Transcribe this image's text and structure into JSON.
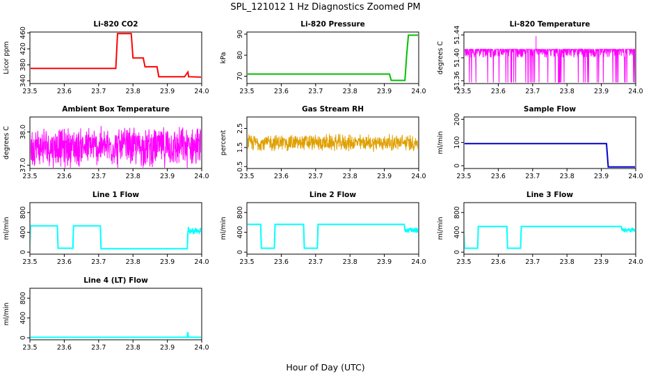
{
  "figure": {
    "title": "SPL_121012  1 Hz Diagnostics Zoomed PM",
    "xlabel": "Hour of Day (UTC)"
  },
  "chart_data": [
    {
      "type": "line",
      "title": "Li-820 CO2",
      "ylabel": "Licor ppm",
      "color": "#ff0000",
      "xlim": [
        23.5,
        24.0
      ],
      "ylim": [
        333,
        462
      ],
      "xticks": [
        "23.5",
        "23.6",
        "23.7",
        "23.8",
        "23.9",
        "24.0"
      ],
      "yticks": [
        "340",
        "380",
        "420",
        "460"
      ],
      "series": [
        {
          "x": [
            23.5,
            23.75,
            23.755,
            23.795,
            23.8,
            23.83,
            23.835,
            23.87,
            23.875,
            23.95,
            23.96,
            23.962,
            24.0
          ],
          "y": [
            371,
            371,
            458,
            458,
            397,
            397,
            375,
            375,
            350,
            350,
            362,
            350,
            349
          ]
        }
      ]
    },
    {
      "type": "line",
      "title": "Li-820 Pressure",
      "ylabel": "kPa",
      "color": "#00c000",
      "xlim": [
        23.5,
        24.0
      ],
      "ylim": [
        66.5,
        91
      ],
      "xticks": [
        "23.5",
        "23.6",
        "23.7",
        "23.8",
        "23.9",
        "24.0"
      ],
      "yticks": [
        "70",
        "80",
        "90"
      ],
      "series": [
        {
          "x": [
            23.5,
            23.915,
            23.92,
            23.96,
            23.965,
            23.97,
            24.0
          ],
          "y": [
            71,
            71,
            68,
            68,
            80,
            89.5,
            89.5
          ]
        }
      ]
    },
    {
      "type": "line",
      "title": "Li-820 Temperature",
      "ylabel": "degrees C",
      "color": "#ff00ff",
      "xlim": [
        23.5,
        24.0
      ],
      "ylim": [
        51.355,
        51.445
      ],
      "xticks": [
        "23.5",
        "23.6",
        "23.7",
        "23.8",
        "23.9",
        "24.0"
      ],
      "yticks": [
        "51.36",
        "51.40",
        "51.44"
      ],
      "band": [
        51.357,
        51.415
      ],
      "spikes": [
        {
          "x": 23.71,
          "y": 51.438
        }
      ]
    },
    {
      "type": "line",
      "title": "Ambient Box Temperature",
      "ylabel": "degrees C",
      "color": "#ff00ff",
      "xlim": [
        23.5,
        24.0
      ],
      "ylim": [
        36.9,
        38.45
      ],
      "xticks": [
        "23.5",
        "23.6",
        "23.7",
        "23.8",
        "23.9",
        "24.0"
      ],
      "yticks": [
        "37.0",
        "38.0"
      ],
      "band": [
        37.0,
        38.35
      ],
      "center": 37.55
    },
    {
      "type": "line",
      "title": "Gas Stream RH",
      "ylabel": "percent",
      "color": "#e0a000",
      "xlim": [
        23.5,
        24.0
      ],
      "ylim": [
        0.4,
        3.1
      ],
      "xticks": [
        "23.5",
        "23.6",
        "23.7",
        "23.8",
        "23.9",
        "24.0"
      ],
      "yticks": [
        "0.5",
        "1.5",
        "2.5"
      ],
      "band": [
        1.2,
        2.2
      ],
      "center": 1.75
    },
    {
      "type": "line",
      "title": "Sample Flow",
      "ylabel": "ml/min",
      "color": "#0000cc",
      "xlim": [
        23.5,
        24.0
      ],
      "ylim": [
        -12,
        210
      ],
      "xticks": [
        "23.5",
        "23.6",
        "23.7",
        "23.8",
        "23.9",
        "24.0"
      ],
      "yticks": [
        "0",
        "100",
        "200"
      ],
      "series": [
        {
          "x": [
            23.5,
            23.915,
            23.92,
            24.0
          ],
          "y": [
            95,
            95,
            -5,
            -5
          ]
        }
      ]
    },
    {
      "type": "line",
      "title": "Line 1 Flow",
      "ylabel": "ml/min",
      "color": "#00ffff",
      "xlim": [
        23.5,
        24.0
      ],
      "ylim": [
        -40,
        1000
      ],
      "xticks": [
        "23.5",
        "23.6",
        "23.7",
        "23.8",
        "23.9",
        "24.0"
      ],
      "yticks": [
        "0",
        "400",
        "800"
      ],
      "series": [
        {
          "x": [
            23.5,
            23.502,
            23.58,
            23.582,
            23.625,
            23.627,
            23.705,
            23.707,
            23.958,
            23.96,
            24.0
          ],
          "y": [
            100,
            530,
            530,
            80,
            80,
            530,
            530,
            70,
            70,
            420,
            420
          ]
        }
      ],
      "noisy": [
        [
          23.96,
          24.0,
          360,
          500
        ]
      ]
    },
    {
      "type": "line",
      "title": "Line 2 Flow",
      "ylabel": "ml/min",
      "color": "#00ffff",
      "xlim": [
        23.5,
        24.0
      ],
      "ylim": [
        -40,
        1000
      ],
      "xticks": [
        "23.5",
        "23.6",
        "23.7",
        "23.8",
        "23.9",
        "24.0"
      ],
      "yticks": [
        "0",
        "400",
        "800"
      ],
      "series": [
        {
          "x": [
            23.5,
            23.502,
            23.54,
            23.542,
            23.58,
            23.582,
            23.665,
            23.667,
            23.705,
            23.707,
            23.958,
            23.96,
            24.0
          ],
          "y": [
            560,
            560,
            560,
            80,
            80,
            560,
            560,
            80,
            80,
            560,
            560,
            450,
            450
          ]
        }
      ],
      "noisy": [
        [
          23.96,
          24.0,
          390,
          500
        ]
      ]
    },
    {
      "type": "line",
      "title": "Line 3 Flow",
      "ylabel": "ml/min",
      "color": "#00ffff",
      "xlim": [
        23.5,
        24.0
      ],
      "ylim": [
        -40,
        1000
      ],
      "xticks": [
        "23.5",
        "23.6",
        "23.7",
        "23.8",
        "23.9",
        "24.0"
      ],
      "yticks": [
        "0",
        "400",
        "800"
      ],
      "series": [
        {
          "x": [
            23.5,
            23.502,
            23.54,
            23.542,
            23.625,
            23.627,
            23.665,
            23.667,
            23.958,
            23.96,
            24.0
          ],
          "y": [
            450,
            80,
            80,
            520,
            520,
            80,
            80,
            520,
            520,
            450,
            450
          ]
        }
      ],
      "noisy": [
        [
          23.96,
          24.0,
          400,
          490
        ]
      ]
    },
    {
      "type": "line",
      "title": "Line 4 (LT) Flow",
      "ylabel": "ml/min",
      "color": "#00ffff",
      "xlim": [
        23.5,
        24.0
      ],
      "ylim": [
        -40,
        1000
      ],
      "xticks": [
        "23.5",
        "23.6",
        "23.7",
        "23.8",
        "23.9",
        "24.0"
      ],
      "yticks": [
        "0",
        "400",
        "800"
      ],
      "series": [
        {
          "x": [
            23.5,
            23.958,
            23.959,
            23.96,
            23.961,
            24.0
          ],
          "y": [
            10,
            10,
            100,
            100,
            10,
            10
          ]
        }
      ]
    }
  ]
}
